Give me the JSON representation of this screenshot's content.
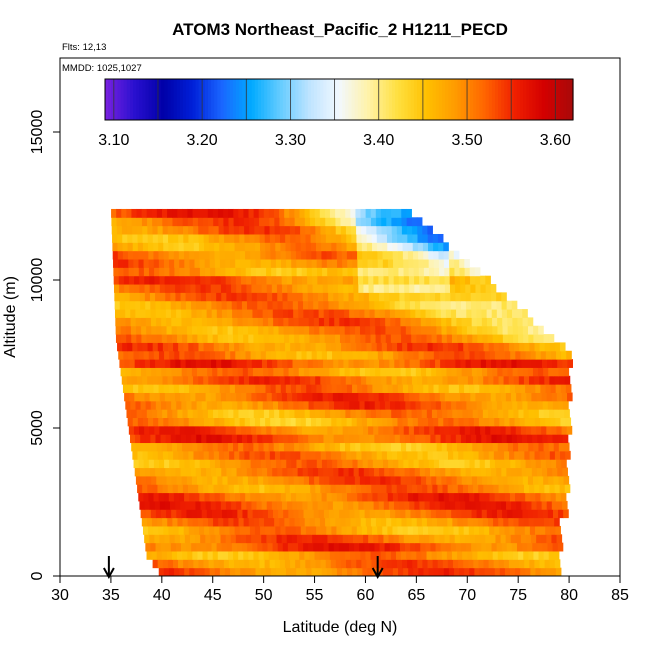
{
  "chart_data": {
    "type": "heatmap",
    "title": "ATOM3 Northeast_Pacific_2 H1211_PECD",
    "flights_label": "Flts: 12,13",
    "mmdd_label": "MMDD: 1025,1027",
    "xlabel": "Latitude (deg N)",
    "ylabel": "Altitude (m)",
    "xlim": [
      30,
      85
    ],
    "ylim": [
      0,
      17500
    ],
    "x_ticks": [
      "30",
      "35",
      "40",
      "45",
      "50",
      "55",
      "60",
      "65",
      "70",
      "75",
      "80",
      "85"
    ],
    "y_ticks": [
      "0",
      "5000",
      "10000",
      "15000"
    ],
    "colorbar": {
      "range": [
        3.09,
        3.62
      ],
      "tick_labels": [
        "3.10",
        "3.20",
        "3.30",
        "3.40",
        "3.50",
        "3.60"
      ],
      "tick_values": [
        3.1,
        3.2,
        3.3,
        3.4,
        3.5,
        3.6
      ],
      "colors": [
        "#7a22e0",
        "#2a10d0",
        "#0000a8",
        "#0020d8",
        "#1a66ff",
        "#00aaff",
        "#66ccff",
        "#bfe4ff",
        "#f2f8ff",
        "#fff2a8",
        "#ffe040",
        "#ffc000",
        "#ff9a00",
        "#ff6400",
        "#f02000",
        "#d40000",
        "#a80a0a"
      ]
    },
    "profile_markers_lat": [
      34.8,
      61.2
    ],
    "data_extent": {
      "lat_range": [
        35.5,
        80.0
      ],
      "alt_range": [
        0,
        12400
      ],
      "base_value_range": [
        3.45,
        3.57
      ]
    }
  }
}
